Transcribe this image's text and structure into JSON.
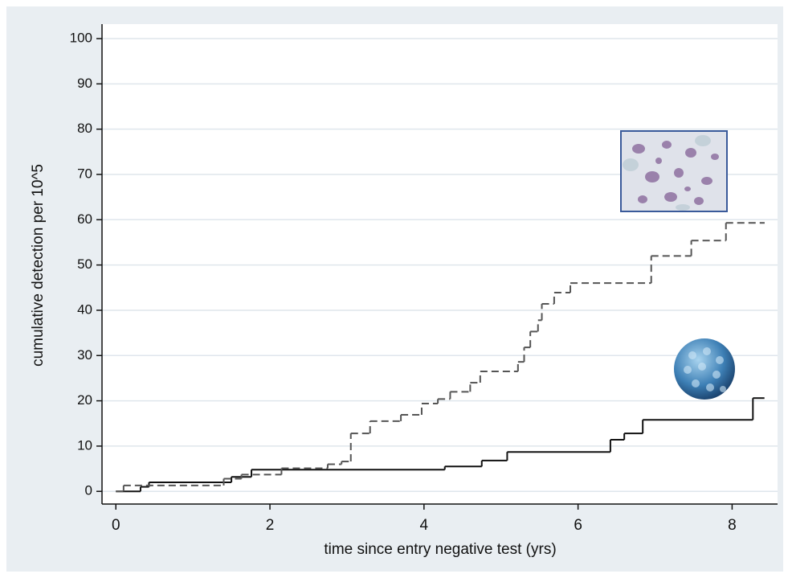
{
  "chart_data": {
    "type": "step",
    "xlabel": "time since entry negative test (yrs)",
    "ylabel": "cumulative detection per 10^5",
    "xlim": [
      -0.18,
      8.59
    ],
    "ylim": [
      -2.8,
      103.2
    ],
    "xticks": [
      0,
      2,
      4,
      6,
      8
    ],
    "yticks": [
      0,
      10,
      20,
      30,
      40,
      50,
      60,
      70,
      80,
      90,
      100
    ],
    "grid": true,
    "series": [
      {
        "color": "#111111",
        "dash": "solid",
        "x": [
          0,
          0.32,
          0.43,
          1.5,
          1.76,
          4.27,
          4.75,
          5.08,
          6.42,
          6.6,
          6.84,
          8.27,
          8.42
        ],
        "values": [
          0,
          1,
          2,
          3.2,
          4.8,
          5.5,
          6.8,
          8.7,
          11.4,
          12.8,
          15.8,
          20.6,
          20.6
        ]
      },
      {
        "color": "#555555",
        "dash": "dashed",
        "x": [
          0,
          0.1,
          1.4,
          1.63,
          2.15,
          2.75,
          2.93,
          3.05,
          3.3,
          3.7,
          3.97,
          4.18,
          4.34,
          4.6,
          4.73,
          5.22,
          5.3,
          5.38,
          5.48,
          5.53,
          5.69,
          5.9,
          6.95,
          7.47,
          7.92,
          8.42
        ],
        "values": [
          0,
          1.3,
          2.8,
          3.7,
          5.1,
          6,
          6.6,
          12.8,
          15.5,
          16.9,
          19.4,
          20.4,
          22,
          24,
          26.5,
          28.6,
          31.8,
          35.3,
          37.8,
          41.4,
          43.9,
          46,
          52,
          55.4,
          59.3,
          59.3
        ]
      }
    ]
  }
}
